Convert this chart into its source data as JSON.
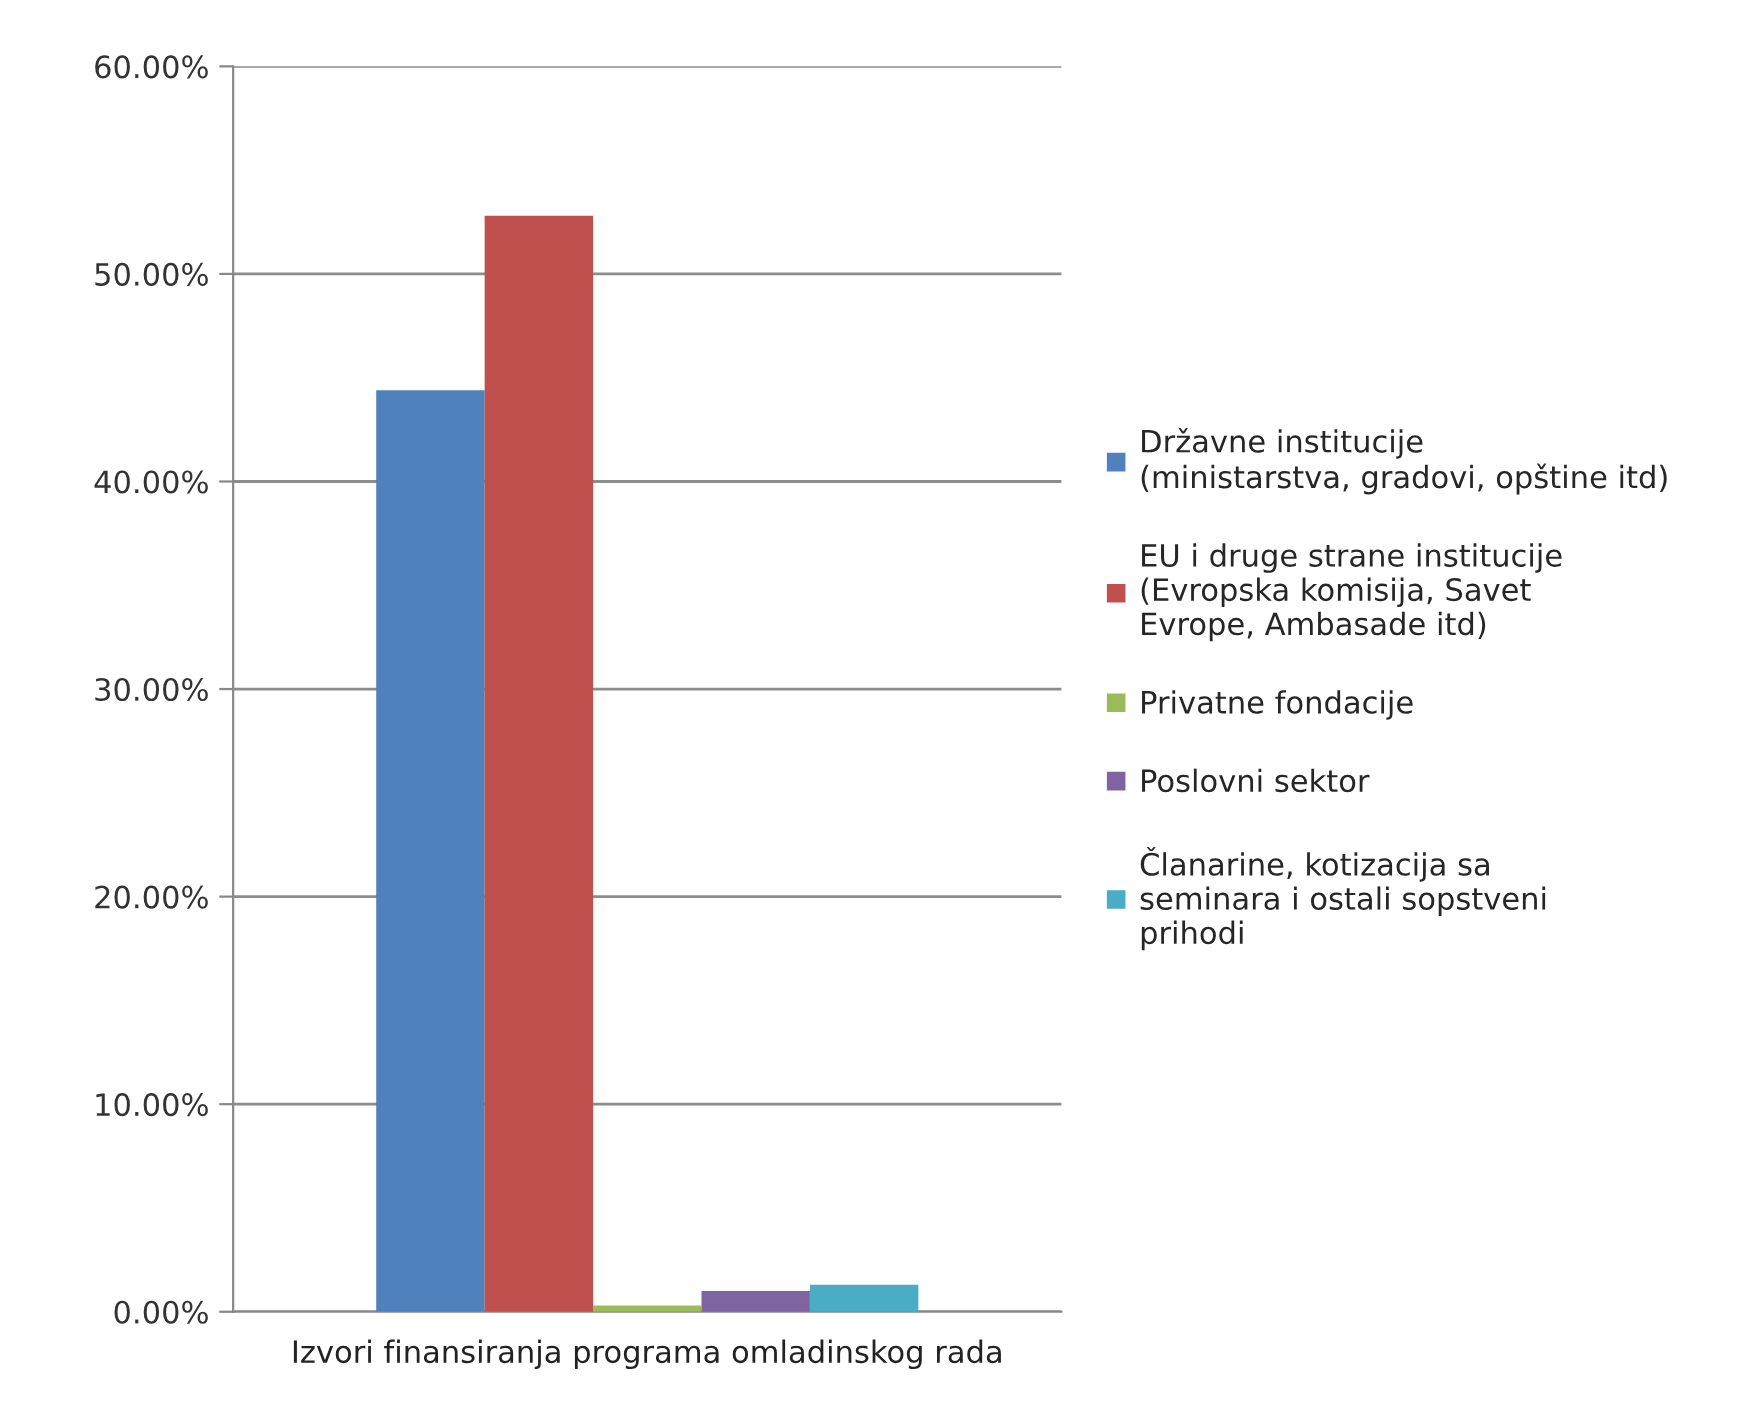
{
  "chart_data": {
    "type": "bar",
    "categories": [
      "Izvori finansiranja programa omladinskog rada"
    ],
    "series": [
      {
        "name": "Državne institucije\n(ministarstva, gradovi, opštine itd)",
        "color": "#4f81bd",
        "values": [
          44.4
        ]
      },
      {
        "name": "EU i druge strane institucije\n(Evropska komisija, Savet\nEvrope, Ambasade itd)",
        "color": "#c0504d",
        "values": [
          52.8
        ]
      },
      {
        "name": "Privatne fondacije",
        "color": "#9bbb59",
        "values": [
          0.3
        ]
      },
      {
        "name": "Poslovni sektor",
        "color": "#8064a2",
        "values": [
          1.0
        ]
      },
      {
        "name": "Članarine, kotizacija sa\nseminara i ostali sopstveni\nprihodi",
        "color": "#4bacc6",
        "values": [
          1.3
        ]
      }
    ],
    "ylim": [
      0,
      60
    ],
    "yticks": [
      {
        "value": 0,
        "label": "0.00%"
      },
      {
        "value": 10,
        "label": "10.00%"
      },
      {
        "value": 20,
        "label": "20.00%"
      },
      {
        "value": 30,
        "label": "30.00%"
      },
      {
        "value": 40,
        "label": "40.00%"
      },
      {
        "value": 50,
        "label": "50.00%"
      },
      {
        "value": 60,
        "label": "60.00%"
      }
    ],
    "grid": "y",
    "legend": "right"
  }
}
